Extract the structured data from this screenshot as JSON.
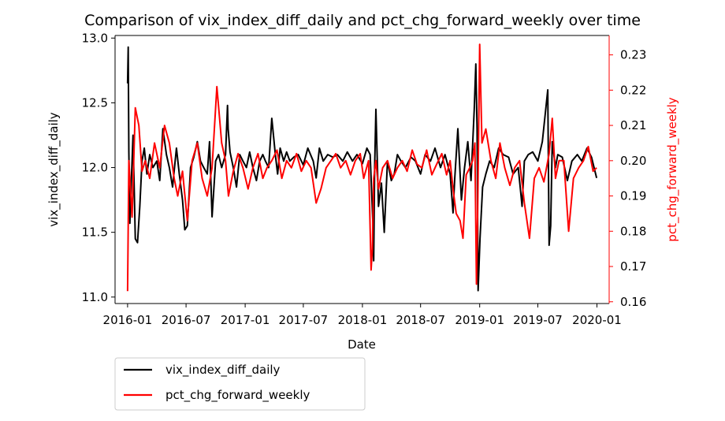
{
  "chart_data": {
    "type": "line",
    "title": "Comparison of vix_index_diff_daily and pct_chg_forward_weekly over time",
    "xlabel": "Date",
    "ylabel_left": "vix_index_diff_daily",
    "ylabel_right": "pct_chg_forward_weekly",
    "x_ticks": [
      "2016-01",
      "2016-07",
      "2017-01",
      "2017-07",
      "2018-01",
      "2018-07",
      "2019-01",
      "2019-07",
      "2020-01"
    ],
    "y_left_ticks": [
      "11.0",
      "11.5",
      "12.0",
      "12.5",
      "13.0"
    ],
    "y_right_ticks": [
      "0.16",
      "0.17",
      "0.18",
      "0.19",
      "0.20",
      "0.21",
      "0.22",
      "0.23"
    ],
    "y_left_range": [
      10.95,
      13.02
    ],
    "y_right_range": [
      0.1595,
      0.2355
    ],
    "x_range": [
      "2015-11-23",
      "2020-02-08"
    ],
    "legend_placement": "below-left",
    "colors": {
      "left_series": "#000000",
      "right_series": "#ff0000"
    },
    "series": [
      {
        "name": "vix_index_diff_daily",
        "axis": "left",
        "x": [
          "2016-01-01",
          "2016-01-03",
          "2016-01-05",
          "2016-01-08",
          "2016-01-12",
          "2016-01-18",
          "2016-01-25",
          "2016-02-01",
          "2016-02-08",
          "2016-02-15",
          "2016-02-22",
          "2016-03-01",
          "2016-03-10",
          "2016-03-20",
          "2016-04-01",
          "2016-04-10",
          "2016-04-20",
          "2016-05-01",
          "2016-05-10",
          "2016-05-20",
          "2016-06-01",
          "2016-06-10",
          "2016-06-20",
          "2016-06-27",
          "2016-07-05",
          "2016-07-15",
          "2016-07-25",
          "2016-08-05",
          "2016-08-15",
          "2016-08-25",
          "2016-09-05",
          "2016-09-12",
          "2016-09-20",
          "2016-10-01",
          "2016-10-10",
          "2016-10-20",
          "2016-11-01",
          "2016-11-07",
          "2016-11-09",
          "2016-11-15",
          "2016-11-25",
          "2016-12-05",
          "2016-12-15",
          "2016-12-25",
          "2017-01-05",
          "2017-01-15",
          "2017-01-25",
          "2017-02-05",
          "2017-02-15",
          "2017-02-25",
          "2017-03-05",
          "2017-03-15",
          "2017-03-25",
          "2017-04-05",
          "2017-04-12",
          "2017-04-20",
          "2017-05-01",
          "2017-05-10",
          "2017-05-20",
          "2017-06-01",
          "2017-06-15",
          "2017-07-01",
          "2017-07-15",
          "2017-08-01",
          "2017-08-10",
          "2017-08-20",
          "2017-09-01",
          "2017-09-15",
          "2017-10-01",
          "2017-10-15",
          "2017-11-01",
          "2017-11-15",
          "2017-12-01",
          "2017-12-15",
          "2018-01-01",
          "2018-01-15",
          "2018-01-25",
          "2018-02-02",
          "2018-02-05",
          "2018-02-08",
          "2018-02-12",
          "2018-02-20",
          "2018-03-01",
          "2018-03-10",
          "2018-03-20",
          "2018-04-01",
          "2018-04-10",
          "2018-04-20",
          "2018-05-01",
          "2018-05-15",
          "2018-06-01",
          "2018-06-15",
          "2018-07-01",
          "2018-07-15",
          "2018-08-01",
          "2018-08-15",
          "2018-09-01",
          "2018-09-15",
          "2018-10-01",
          "2018-10-10",
          "2018-10-15",
          "2018-10-25",
          "2018-11-05",
          "2018-11-15",
          "2018-11-25",
          "2018-12-05",
          "2018-12-15",
          "2018-12-20",
          "2018-12-24",
          "2018-12-27",
          "2019-01-02",
          "2019-01-10",
          "2019-01-20",
          "2019-02-01",
          "2019-02-15",
          "2019-03-01",
          "2019-03-15",
          "2019-04-01",
          "2019-04-15",
          "2019-05-01",
          "2019-05-07",
          "2019-05-13",
          "2019-05-20",
          "2019-06-01",
          "2019-06-15",
          "2019-07-01",
          "2019-07-15",
          "2019-08-01",
          "2019-08-05",
          "2019-08-10",
          "2019-08-15",
          "2019-08-25",
          "2019-09-01",
          "2019-09-15",
          "2019-10-01",
          "2019-10-15",
          "2019-11-01",
          "2019-11-15",
          "2019-12-01",
          "2019-12-15",
          "2019-12-31"
        ],
        "values": [
          12.65,
          12.93,
          12.12,
          11.57,
          11.85,
          12.25,
          11.45,
          11.42,
          11.7,
          12.05,
          12.15,
          11.95,
          12.1,
          12.0,
          12.05,
          11.9,
          12.3,
          12.1,
          12.0,
          11.85,
          12.15,
          11.95,
          11.75,
          11.52,
          11.55,
          12.0,
          12.08,
          12.2,
          12.05,
          12.0,
          11.95,
          12.2,
          11.62,
          12.05,
          12.1,
          12.0,
          12.1,
          12.48,
          12.3,
          12.12,
          12.0,
          11.85,
          12.1,
          12.05,
          12.0,
          12.12,
          12.0,
          11.9,
          12.05,
          12.1,
          12.05,
          12.0,
          12.38,
          12.1,
          11.95,
          12.15,
          12.05,
          12.12,
          12.05,
          12.08,
          12.1,
          12.02,
          12.15,
          12.05,
          11.92,
          12.15,
          12.05,
          12.1,
          12.08,
          12.1,
          12.05,
          12.12,
          12.05,
          12.1,
          12.03,
          12.15,
          12.1,
          11.6,
          11.28,
          12.0,
          12.45,
          11.7,
          11.88,
          11.5,
          12.05,
          11.9,
          11.95,
          12.1,
          12.05,
          12.0,
          12.08,
          12.05,
          11.95,
          12.1,
          12.05,
          12.15,
          12.0,
          12.1,
          11.95,
          11.65,
          11.9,
          12.3,
          11.75,
          12.0,
          12.2,
          11.9,
          12.45,
          12.8,
          12.3,
          11.05,
          11.45,
          11.85,
          11.95,
          12.05,
          12.0,
          12.15,
          12.1,
          12.08,
          11.95,
          12.0,
          11.85,
          11.7,
          12.05,
          12.1,
          12.12,
          12.05,
          12.2,
          12.6,
          11.4,
          11.55,
          12.2,
          12.0,
          12.1,
          12.08,
          11.9,
          12.05,
          12.1,
          12.05,
          12.15,
          12.08,
          11.92
        ]
      },
      {
        "name": "pct_chg_forward_weekly",
        "axis": "right",
        "x": [
          "2016-01-01",
          "2016-01-05",
          "2016-01-15",
          "2016-01-25",
          "2016-02-05",
          "2016-02-15",
          "2016-02-25",
          "2016-03-10",
          "2016-03-25",
          "2016-04-10",
          "2016-04-25",
          "2016-05-10",
          "2016-05-25",
          "2016-06-05",
          "2016-06-20",
          "2016-07-05",
          "2016-07-20",
          "2016-08-05",
          "2016-08-20",
          "2016-09-05",
          "2016-09-20",
          "2016-10-05",
          "2016-10-20",
          "2016-11-01",
          "2016-11-10",
          "2016-11-25",
          "2016-12-10",
          "2016-12-25",
          "2017-01-10",
          "2017-01-25",
          "2017-02-10",
          "2017-02-25",
          "2017-03-10",
          "2017-03-25",
          "2017-04-10",
          "2017-04-25",
          "2017-05-10",
          "2017-05-25",
          "2017-06-10",
          "2017-06-25",
          "2017-07-10",
          "2017-07-25",
          "2017-08-10",
          "2017-08-25",
          "2017-09-10",
          "2017-09-25",
          "2017-10-10",
          "2017-10-25",
          "2017-11-10",
          "2017-11-25",
          "2017-12-10",
          "2017-12-25",
          "2018-01-05",
          "2018-01-20",
          "2018-01-28",
          "2018-02-01",
          "2018-02-05",
          "2018-02-12",
          "2018-02-20",
          "2018-03-05",
          "2018-03-20",
          "2018-04-05",
          "2018-04-20",
          "2018-05-05",
          "2018-05-20",
          "2018-06-05",
          "2018-06-20",
          "2018-07-05",
          "2018-07-20",
          "2018-08-05",
          "2018-08-20",
          "2018-09-05",
          "2018-09-20",
          "2018-10-01",
          "2018-10-10",
          "2018-10-20",
          "2018-11-01",
          "2018-11-10",
          "2018-11-20",
          "2018-12-01",
          "2018-12-10",
          "2018-12-17",
          "2018-12-22",
          "2018-12-26",
          "2019-01-01",
          "2019-01-08",
          "2019-01-20",
          "2019-02-05",
          "2019-02-20",
          "2019-03-05",
          "2019-03-20",
          "2019-04-05",
          "2019-04-20",
          "2019-05-05",
          "2019-05-20",
          "2019-06-05",
          "2019-06-20",
          "2019-07-05",
          "2019-07-20",
          "2019-08-05",
          "2019-08-15",
          "2019-08-25",
          "2019-09-05",
          "2019-09-20",
          "2019-10-05",
          "2019-10-20",
          "2019-11-05",
          "2019-11-20",
          "2019-12-05",
          "2019-12-20",
          "2019-12-31"
        ],
        "values": [
          0.163,
          0.2,
          0.184,
          0.215,
          0.21,
          0.197,
          0.2,
          0.195,
          0.205,
          0.198,
          0.21,
          0.205,
          0.195,
          0.19,
          0.197,
          0.183,
          0.2,
          0.205,
          0.195,
          0.19,
          0.198,
          0.221,
          0.205,
          0.2,
          0.19,
          0.197,
          0.202,
          0.198,
          0.192,
          0.198,
          0.202,
          0.195,
          0.198,
          0.2,
          0.203,
          0.195,
          0.2,
          0.198,
          0.202,
          0.197,
          0.2,
          0.198,
          0.188,
          0.192,
          0.198,
          0.2,
          0.202,
          0.198,
          0.2,
          0.196,
          0.2,
          0.202,
          0.195,
          0.2,
          0.169,
          0.175,
          0.195,
          0.2,
          0.192,
          0.198,
          0.2,
          0.195,
          0.198,
          0.2,
          0.197,
          0.203,
          0.199,
          0.198,
          0.203,
          0.196,
          0.199,
          0.202,
          0.196,
          0.2,
          0.192,
          0.185,
          0.183,
          0.178,
          0.196,
          0.198,
          0.2,
          0.205,
          0.165,
          0.188,
          0.233,
          0.205,
          0.209,
          0.2,
          0.195,
          0.205,
          0.198,
          0.193,
          0.198,
          0.2,
          0.188,
          0.178,
          0.195,
          0.198,
          0.194,
          0.202,
          0.212,
          0.195,
          0.2,
          0.2,
          0.18,
          0.195,
          0.198,
          0.2,
          0.204,
          0.197,
          0.198
        ]
      }
    ]
  }
}
